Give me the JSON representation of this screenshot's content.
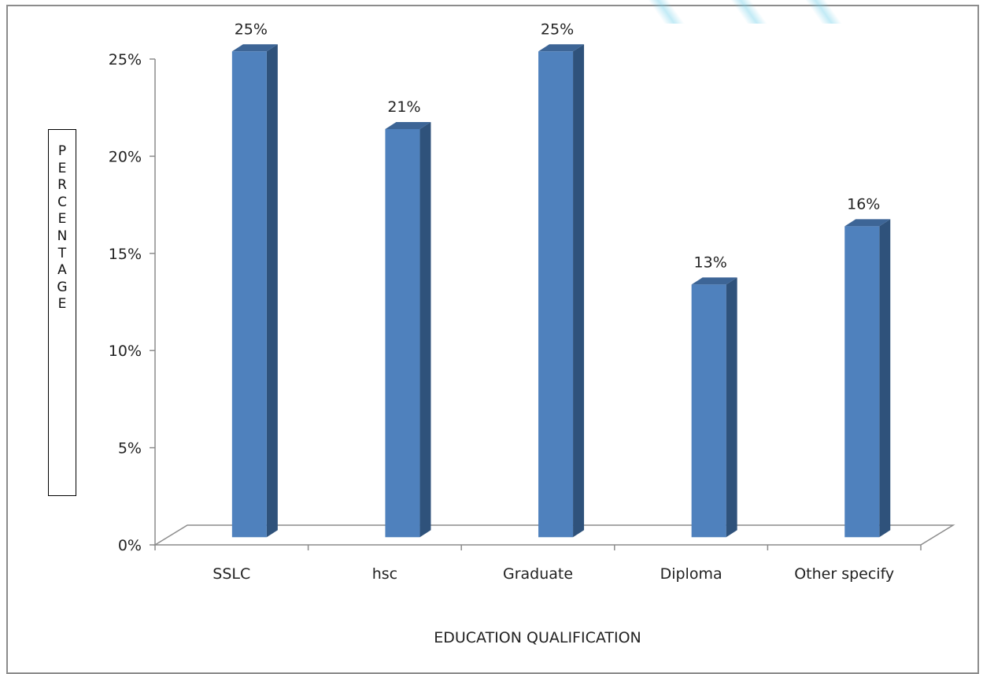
{
  "chart_data": {
    "type": "bar",
    "style": "3d-clustered-column",
    "title": "",
    "xlabel": "EDUCATION QUALIFICATION",
    "ylabel": "PERCENTAGE",
    "categories": [
      "SSLC",
      "hsc",
      "Graduate",
      "Diploma",
      "Other specify"
    ],
    "values": [
      25,
      21,
      25,
      13,
      16
    ],
    "data_labels": [
      "25%",
      "21%",
      "25%",
      "13%",
      "16%"
    ],
    "y_ticks": [
      "0%",
      "5%",
      "10%",
      "15%",
      "20%",
      "25%"
    ],
    "ylim": [
      0,
      25
    ],
    "grid": false,
    "legend": "none",
    "colors": {
      "bar_front": "#4f81bd",
      "bar_side": "#2f527b",
      "bar_top": "#3d6596",
      "axis": "#8c8c8c",
      "frame": "#8c8c8c"
    }
  }
}
